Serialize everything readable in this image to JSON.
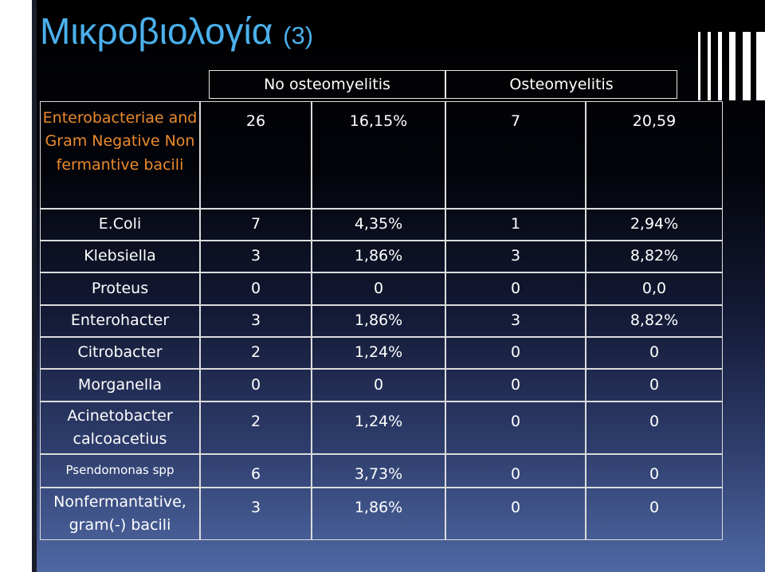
{
  "title": {
    "main": "Μικροβιολογία",
    "sub": "(3)"
  },
  "header": {
    "no_osteo": "No  osteomyelitis",
    "osteo": "Osteomyelitis"
  },
  "rows": [
    {
      "label": "Enterobacteriae and Gram Negative Non fermantive bacili",
      "c1": "26",
      "c2": "16,15%",
      "c3": "7",
      "c4": "20,59"
    },
    {
      "label": "E.Coli",
      "c1": "7",
      "c2": "4,35%",
      "c3": "1",
      "c4": "2,94%"
    },
    {
      "label": "Klebsiella",
      "c1": "3",
      "c2": "1,86%",
      "c3": "3",
      "c4": "8,82%"
    },
    {
      "label": "Proteus",
      "c1": "0",
      "c2": "0",
      "c3": "0",
      "c4": "0,0"
    },
    {
      "label": "Enterohacter",
      "c1": "3",
      "c2": "1,86%",
      "c3": "3",
      "c4": "8,82%"
    },
    {
      "label": "Citrobacter",
      "c1": "2",
      "c2": "1,24%",
      "c3": "0",
      "c4": "0"
    },
    {
      "label": "Morganella",
      "c1": "0",
      "c2": "0",
      "c3": "0",
      "c4": "0"
    },
    {
      "label": "Acinetobacter calcoacetius",
      "c1": "2",
      "c2": "1,24%",
      "c3": "0",
      "c4": "0"
    },
    {
      "label": "Psendomonas spp",
      "c1": "6",
      "c2": "3,73%",
      "c3": "0",
      "c4": "0"
    },
    {
      "label": "Nonfermantative, gram(-) bacili",
      "c1": "3",
      "c2": "1,86%",
      "c3": "0",
      "c4": "0"
    }
  ],
  "colors": {
    "title": "#4bb0ec",
    "first_label": "#e98a2e",
    "text": "#ffffff"
  }
}
